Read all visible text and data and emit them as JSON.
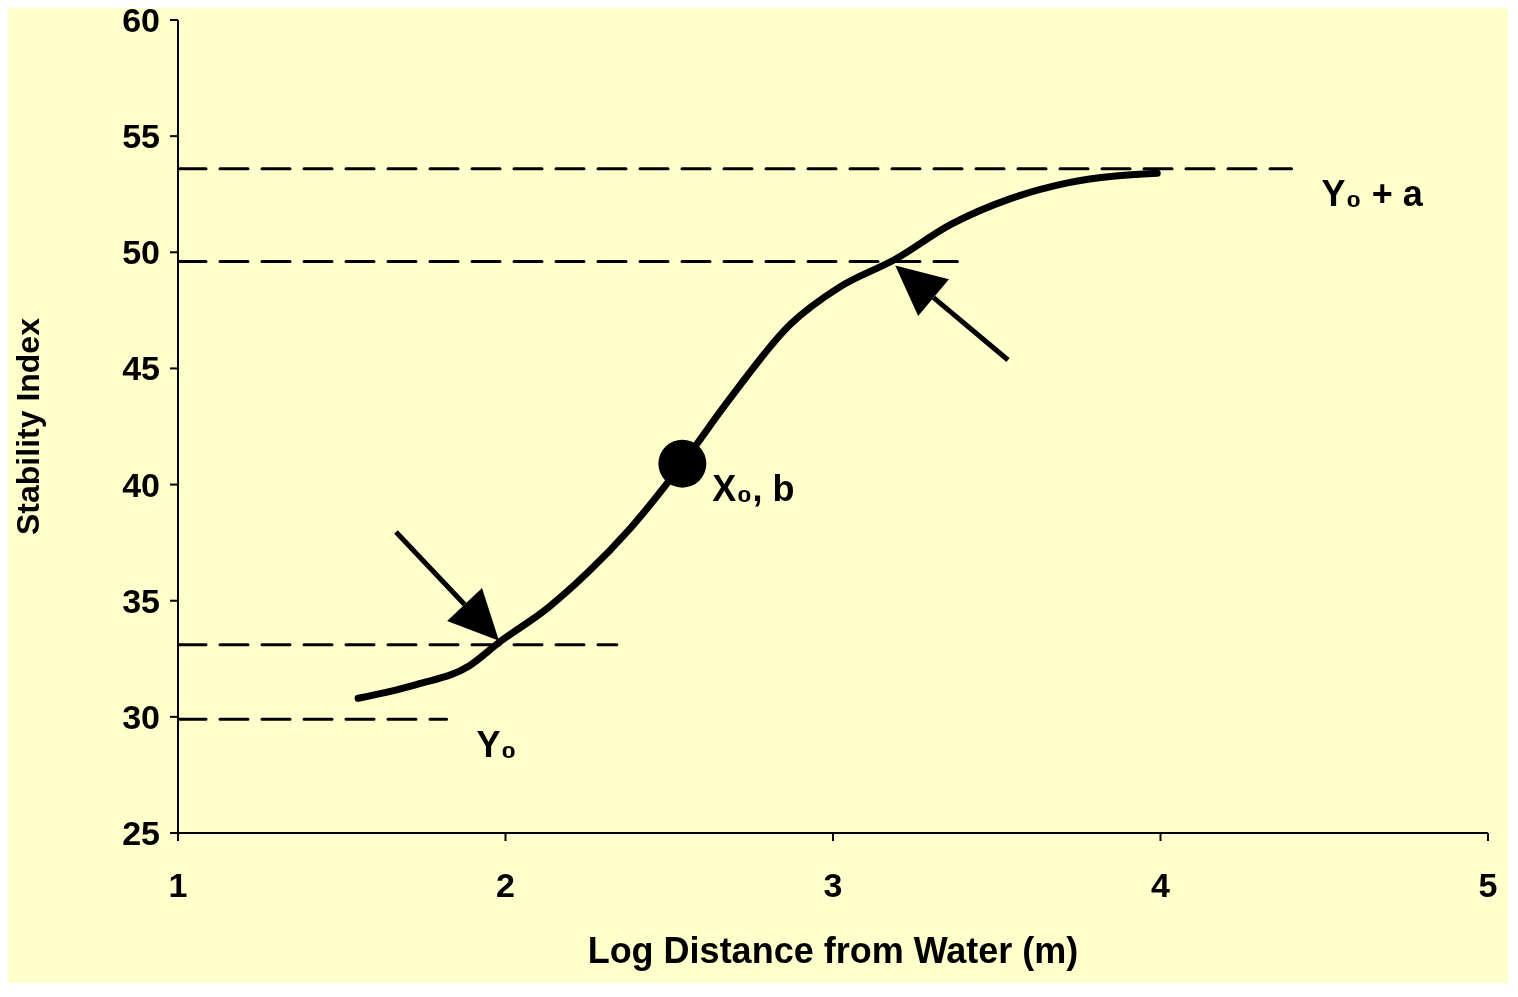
{
  "chart_data": {
    "type": "line",
    "xlabel": "Log Distance from Water (m)",
    "ylabel": "Stability Index",
    "xlim": [
      1,
      5
    ],
    "xticks": [
      1,
      2,
      3,
      4,
      5
    ],
    "ylim": [
      25,
      60
    ],
    "yticks": [
      25,
      30,
      35,
      40,
      45,
      50,
      55,
      60
    ],
    "series": [
      {
        "color": "#000000",
        "marker": "none",
        "line_style": "solid",
        "x": [
          1.55,
          1.73,
          1.89,
          1.98,
          2.13,
          2.25,
          2.38,
          2.54,
          2.68,
          2.87,
          3.02,
          3.19,
          3.36,
          3.54,
          3.72,
          3.99
        ],
        "values": [
          30.8,
          31.4,
          32.2,
          33.2,
          34.7,
          36.2,
          38.1,
          40.9,
          43.6,
          46.9,
          48.5,
          49.7,
          51.2,
          52.3,
          53.0,
          53.4
        ]
      },
      {
        "type": "line",
        "color": "#000000",
        "marker": "none",
        "line_style": "dashed",
        "x": [
          1,
          4.4
        ],
        "values": [
          53.6,
          53.6
        ]
      },
      {
        "type": "line",
        "color": "#000000",
        "marker": "none",
        "line_style": "dashed",
        "x": [
          1,
          1.82
        ],
        "values": [
          29.9,
          29.9
        ]
      },
      {
        "type": "line",
        "color": "#000000",
        "marker": "none",
        "line_style": "dashed",
        "x": [
          1,
          3.38
        ],
        "values": [
          49.6,
          49.6
        ]
      },
      {
        "type": "line",
        "color": "#000000",
        "marker": "none",
        "line_style": "dashed",
        "x": [
          1,
          2.34
        ],
        "values": [
          33.1,
          33.1
        ]
      },
      {
        "type": "scatter",
        "color": "#000000",
        "marker": "circle",
        "x": [
          2.54
        ],
        "values": [
          40.9
        ]
      }
    ],
    "annotations": [
      {
        "text": "Y₀ + a",
        "x": 4.4,
        "y": 53.6
      },
      {
        "text": "Y₀",
        "x": 1.82,
        "y": 29.9
      },
      {
        "text": "X₀, b",
        "x": 2.54,
        "y": 40.9
      }
    ]
  }
}
